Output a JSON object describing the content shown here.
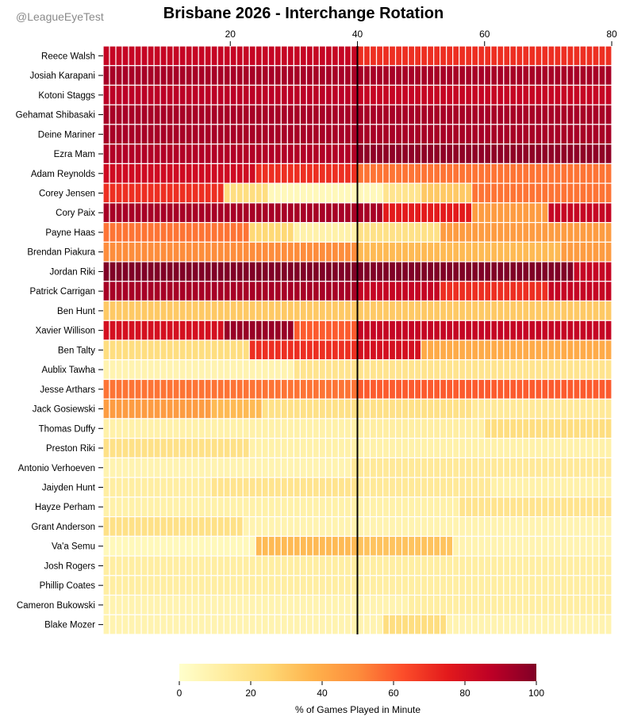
{
  "watermark": "@LeagueEyeTest",
  "chart_data": {
    "type": "heatmap",
    "title": "Brisbane 2026 - Interchange Rotation",
    "x_axis": {
      "position": "top",
      "range": [
        0,
        80
      ],
      "ticks": [
        20,
        40,
        60,
        80
      ],
      "label": ""
    },
    "cells_per_row": 80,
    "vertical_marker_at": 40,
    "colorbar": {
      "label": "% of Games Played in Minute",
      "range": [
        0,
        100
      ],
      "ticks": [
        0,
        20,
        40,
        60,
        80,
        100
      ]
    },
    "colormap": [
      "#ffffcc",
      "#ffeda0",
      "#fed976",
      "#feb24c",
      "#fd8d3c",
      "#fc4e2a",
      "#e31a1c",
      "#bd0026",
      "#800026"
    ],
    "rows": [
      {
        "player": "Reece Walsh",
        "segments": [
          [
            1,
            40,
            85
          ],
          [
            41,
            80,
            70
          ]
        ]
      },
      {
        "player": "Josiah Karapani",
        "segments": [
          [
            1,
            80,
            92
          ]
        ]
      },
      {
        "player": "Kotoni Staggs",
        "segments": [
          [
            1,
            40,
            88
          ],
          [
            41,
            80,
            85
          ]
        ]
      },
      {
        "player": "Gehamat Shibasaki",
        "segments": [
          [
            1,
            80,
            92
          ]
        ]
      },
      {
        "player": "Deine Mariner",
        "segments": [
          [
            1,
            80,
            92
          ]
        ]
      },
      {
        "player": "Ezra Mam",
        "segments": [
          [
            1,
            40,
            90
          ],
          [
            41,
            80,
            97
          ]
        ]
      },
      {
        "player": "Adam Reynolds",
        "segments": [
          [
            1,
            24,
            82
          ],
          [
            25,
            40,
            70
          ],
          [
            41,
            80,
            55
          ]
        ]
      },
      {
        "player": "Corey Jensen",
        "segments": [
          [
            1,
            19,
            70
          ],
          [
            20,
            26,
            22
          ],
          [
            27,
            40,
            5
          ],
          [
            41,
            44,
            5
          ],
          [
            45,
            50,
            18
          ],
          [
            51,
            58,
            30
          ],
          [
            59,
            80,
            55
          ]
        ]
      },
      {
        "player": "Cory Paix",
        "segments": [
          [
            1,
            44,
            92
          ],
          [
            45,
            58,
            75
          ],
          [
            59,
            70,
            45
          ],
          [
            71,
            80,
            85
          ]
        ]
      },
      {
        "player": "Payne Haas",
        "segments": [
          [
            1,
            23,
            55
          ],
          [
            24,
            30,
            25
          ],
          [
            31,
            40,
            10
          ],
          [
            41,
            53,
            20
          ],
          [
            54,
            80,
            45
          ]
        ]
      },
      {
        "player": "Brendan Piakura",
        "segments": [
          [
            1,
            40,
            50
          ],
          [
            41,
            72,
            35
          ],
          [
            73,
            80,
            45
          ]
        ]
      },
      {
        "player": "Jordan Riki",
        "segments": [
          [
            1,
            74,
            100
          ],
          [
            75,
            80,
            85
          ]
        ]
      },
      {
        "player": "Patrick Carrigan",
        "segments": [
          [
            1,
            40,
            92
          ],
          [
            41,
            53,
            85
          ],
          [
            54,
            70,
            70
          ],
          [
            71,
            80,
            85
          ]
        ]
      },
      {
        "player": "Ben Hunt",
        "segments": [
          [
            1,
            80,
            30
          ]
        ]
      },
      {
        "player": "Xavier Willison",
        "segments": [
          [
            1,
            19,
            80
          ],
          [
            20,
            30,
            95
          ],
          [
            31,
            40,
            60
          ],
          [
            41,
            80,
            85
          ]
        ]
      },
      {
        "player": "Ben Talty",
        "segments": [
          [
            1,
            23,
            22
          ],
          [
            24,
            40,
            70
          ],
          [
            41,
            50,
            80
          ],
          [
            51,
            80,
            40
          ]
        ]
      },
      {
        "player": "Aublix Tawha",
        "segments": [
          [
            1,
            30,
            8
          ],
          [
            31,
            80,
            18
          ]
        ]
      },
      {
        "player": "Jesse Arthars",
        "segments": [
          [
            1,
            40,
            55
          ],
          [
            41,
            80,
            60
          ]
        ]
      },
      {
        "player": "Jack Gosiewski",
        "segments": [
          [
            1,
            17,
            45
          ],
          [
            18,
            25,
            35
          ],
          [
            26,
            58,
            20
          ],
          [
            59,
            80,
            15
          ]
        ]
      },
      {
        "player": "Thomas Duffy",
        "segments": [
          [
            1,
            40,
            10
          ],
          [
            41,
            60,
            12
          ],
          [
            61,
            80,
            22
          ]
        ]
      },
      {
        "player": "Preston Riki",
        "segments": [
          [
            1,
            23,
            20
          ],
          [
            24,
            80,
            10
          ]
        ]
      },
      {
        "player": "Antonio Verhoeven",
        "segments": [
          [
            1,
            39,
            8
          ],
          [
            40,
            80,
            15
          ]
        ]
      },
      {
        "player": "Jaiyden Hunt",
        "segments": [
          [
            1,
            17,
            12
          ],
          [
            18,
            40,
            18
          ],
          [
            41,
            61,
            15
          ],
          [
            62,
            80,
            10
          ]
        ]
      },
      {
        "player": "Hayze Perham",
        "segments": [
          [
            1,
            56,
            10
          ],
          [
            57,
            80,
            18
          ]
        ]
      },
      {
        "player": "Grant Anderson",
        "segments": [
          [
            1,
            22,
            20
          ],
          [
            23,
            80,
            8
          ]
        ]
      },
      {
        "player": "Va'a Semu",
        "segments": [
          [
            1,
            24,
            5
          ],
          [
            25,
            40,
            35
          ],
          [
            41,
            55,
            32
          ],
          [
            56,
            80,
            8
          ]
        ]
      },
      {
        "player": "Josh Rogers",
        "segments": [
          [
            1,
            80,
            12
          ]
        ]
      },
      {
        "player": "Phillip Coates",
        "segments": [
          [
            1,
            80,
            12
          ]
        ]
      },
      {
        "player": "Cameron Bukowski",
        "segments": [
          [
            1,
            48,
            8
          ],
          [
            49,
            80,
            12
          ]
        ]
      },
      {
        "player": "Blake Mozer",
        "segments": [
          [
            1,
            44,
            8
          ],
          [
            45,
            54,
            22
          ],
          [
            55,
            80,
            8
          ]
        ]
      }
    ]
  }
}
